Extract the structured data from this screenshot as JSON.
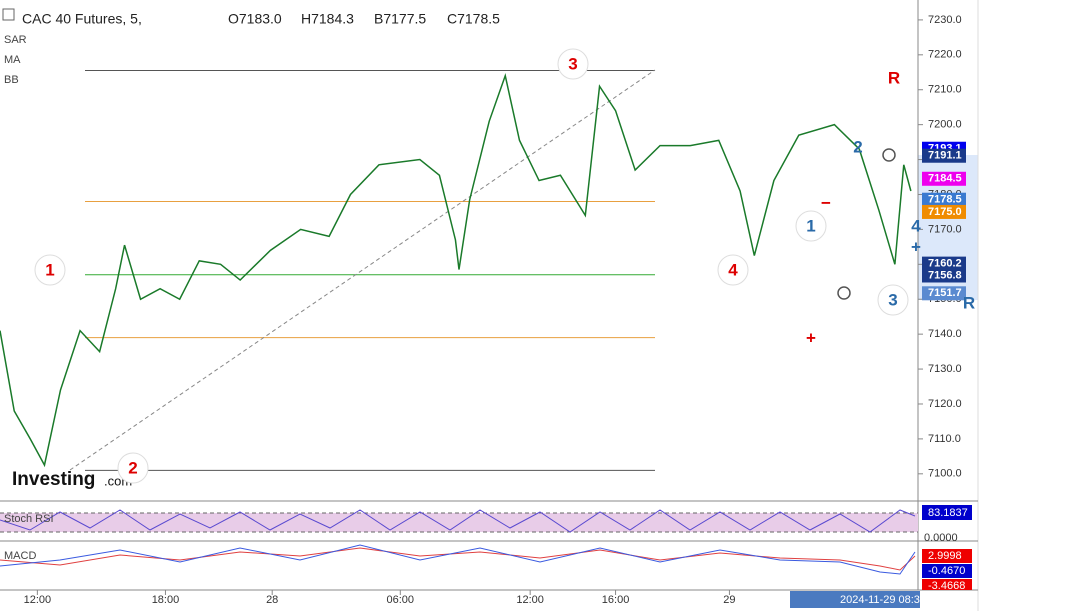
{
  "chart_data": {
    "type": "line",
    "title": "CAC 40 Futures, 5,",
    "ohlc": [
      "O7183.0",
      "H7184.3",
      "B7177.5",
      "C7178.5"
    ],
    "indicators": [
      "SAR",
      "MA",
      "BB"
    ],
    "logo": [
      "Investing",
      ".com"
    ],
    "xlim": [
      0,
      516
    ],
    "ylim": [
      7092.5,
      7235.7
    ],
    "xticks": [
      {
        "value": 21,
        "label": "12:00"
      },
      {
        "value": 93,
        "label": "18:00"
      },
      {
        "value": 153,
        "label": "28"
      },
      {
        "value": 225,
        "label": "06:00"
      },
      {
        "value": 298,
        "label": "12:00"
      },
      {
        "value": 346,
        "label": "16:00"
      },
      {
        "value": 410,
        "label": "29"
      }
    ],
    "yticks": [
      {
        "value": 7230,
        "label": "7230.0"
      },
      {
        "value": 7220,
        "label": "7220.0"
      },
      {
        "value": 7210,
        "label": "7210.0"
      },
      {
        "value": 7200,
        "label": "7200.0"
      },
      {
        "value": 7190,
        "label": "7190.0"
      },
      {
        "value": 7180,
        "label": "7180.0"
      },
      {
        "value": 7170,
        "label": "7170.0"
      },
      {
        "value": 7160,
        "label": "7160.0"
      },
      {
        "value": 7150,
        "label": "7150.0"
      },
      {
        "value": 7140,
        "label": "7140.0"
      },
      {
        "value": 7130,
        "label": "7130.0"
      },
      {
        "value": 7120,
        "label": "7120.0"
      },
      {
        "value": 7110,
        "label": "7110.0"
      },
      {
        "value": 7100,
        "label": "7100.0"
      }
    ],
    "series": [
      {
        "name": "CAC 40 Futures",
        "color": "#1a7a2a",
        "x": [
          0,
          8,
          17,
          25,
          34,
          45,
          56,
          65,
          70,
          79,
          90,
          101,
          112,
          124,
          135,
          152,
          169,
          185,
          197,
          213,
          236,
          247,
          256,
          258,
          264,
          275,
          284,
          292,
          303,
          315,
          329,
          337,
          346,
          357,
          371,
          388,
          404,
          416,
          424,
          435,
          449,
          469,
          483,
          494,
          503,
          508,
          512
        ],
        "values": [
          7141,
          7118,
          7110,
          7102.5,
          7124,
          7141,
          7135,
          7153,
          7165.5,
          7150,
          7153,
          7150,
          7161,
          7160,
          7155.5,
          7164,
          7170,
          7168,
          7180,
          7188.5,
          7190,
          7185.5,
          7167,
          7158.5,
          7178.5,
          7201,
          7214,
          7195.5,
          7184,
          7185.5,
          7174,
          7211,
          7204,
          7187,
          7194,
          7194,
          7195.5,
          7181,
          7162.5,
          7184,
          7197,
          7200,
          7193,
          7175.5,
          7160,
          7188.5,
          7181
        ]
      }
    ],
    "levels": [
      {
        "value": 7215.5,
        "color": "#555555"
      },
      {
        "value": 7178,
        "color": "#e8a040"
      },
      {
        "value": 7157,
        "color": "#33aa33"
      },
      {
        "value": 7139,
        "color": "#e8a040"
      },
      {
        "value": 7101,
        "color": "#555555"
      }
    ],
    "price_tags": [
      {
        "value": 7193.1,
        "label": "7193.1",
        "color": "#0000ee"
      },
      {
        "value": 7191.1,
        "label": "7191.1",
        "color": "#1a3a8a"
      },
      {
        "value": 7184.5,
        "label": "7184.5",
        "color": "#ee00ee"
      },
      {
        "value": 7178.5,
        "label": "7178.5",
        "color": "#3a7ad0"
      },
      {
        "value": 7175.0,
        "label": "7175.0",
        "color": "#f08c00"
      },
      {
        "value": 7160.2,
        "label": "7160.2",
        "color": "#1a3a8a"
      },
      {
        "value": 7156.8,
        "label": "7156.8",
        "color": "#1a3a8a"
      },
      {
        "value": 7151.7,
        "label": "7151.7",
        "color": "#5a8ad0"
      }
    ],
    "annotations": [
      "1",
      "2",
      "3",
      "R",
      "4",
      "1",
      "2",
      "4",
      "3",
      "R",
      "+",
      "−",
      "+"
    ],
    "stoch": {
      "name": "Stoch RSI",
      "labels": [
        "83.1837",
        "0.0000"
      ]
    },
    "macd": {
      "name": "MACD",
      "labels": [
        "2.9998",
        "-0.4670",
        "-3.4668"
      ]
    },
    "cursor_time": "2024-11-29 08:3"
  }
}
